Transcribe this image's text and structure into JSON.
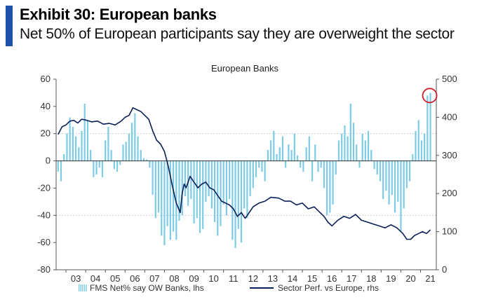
{
  "header": {
    "title": "Exhibit 30: European banks",
    "subtitle": "Net 50% of European participants say they are overweight the sector"
  },
  "colors": {
    "accent": "#1f4fa8",
    "bars": "#7ecbe6",
    "line": "#0b1f57",
    "highlight": "#d21f2b"
  },
  "chart_data": {
    "type": "bar",
    "title": "European Banks",
    "x_ticks": [
      "03",
      "04",
      "05",
      "06",
      "07",
      "08",
      "09",
      "10",
      "11",
      "12",
      "13",
      "14",
      "15",
      "16",
      "17",
      "18",
      "19",
      "20",
      "21"
    ],
    "y_left_ticks": [
      "60",
      "40",
      "20",
      "0",
      "-20",
      "-40",
      "-60",
      "-80"
    ],
    "y_right_ticks": [
      "500",
      "400",
      "300",
      "200",
      "100",
      "0"
    ],
    "ylim_left": [
      -80,
      60
    ],
    "ylim_right": [
      0,
      500
    ],
    "xlim": [
      2002.5,
      2021.8
    ],
    "legend": {
      "placement": "bottom",
      "entries": [
        "FMS Net% say OW Banks, lhs",
        "Sector Perf. vs Europe, rhs"
      ]
    },
    "annotation": "circle around the latest reading (2021)",
    "series": [
      {
        "name": "FMS Net% say OW Banks, lhs",
        "axis": "left",
        "x": [
          2002.6,
          2002.75,
          2002.9,
          2003.05,
          2003.2,
          2003.35,
          2003.5,
          2003.65,
          2003.8,
          2003.95,
          2004.1,
          2004.25,
          2004.4,
          2004.55,
          2004.7,
          2004.85,
          2005.0,
          2005.15,
          2005.3,
          2005.45,
          2005.6,
          2005.75,
          2005.9,
          2006.05,
          2006.2,
          2006.35,
          2006.5,
          2006.65,
          2006.8,
          2006.95,
          2007.1,
          2007.25,
          2007.4,
          2007.55,
          2007.7,
          2007.85,
          2008.0,
          2008.15,
          2008.3,
          2008.45,
          2008.6,
          2008.75,
          2008.9,
          2009.05,
          2009.2,
          2009.35,
          2009.5,
          2009.65,
          2009.8,
          2009.95,
          2010.1,
          2010.25,
          2010.4,
          2010.55,
          2010.7,
          2010.85,
          2011.0,
          2011.15,
          2011.3,
          2011.45,
          2011.6,
          2011.75,
          2011.9,
          2012.05,
          2012.2,
          2012.35,
          2012.5,
          2012.65,
          2012.8,
          2012.95,
          2013.1,
          2013.25,
          2013.4,
          2013.55,
          2013.7,
          2013.85,
          2014.0,
          2014.15,
          2014.3,
          2014.45,
          2014.6,
          2014.75,
          2014.9,
          2015.05,
          2015.2,
          2015.35,
          2015.5,
          2015.65,
          2015.8,
          2015.95,
          2016.1,
          2016.25,
          2016.4,
          2016.55,
          2016.7,
          2016.85,
          2017.0,
          2017.15,
          2017.3,
          2017.45,
          2017.6,
          2017.75,
          2017.9,
          2018.05,
          2018.2,
          2018.35,
          2018.5,
          2018.65,
          2018.8,
          2018.95,
          2019.1,
          2019.25,
          2019.4,
          2019.55,
          2019.7,
          2019.85,
          2020.0,
          2020.15,
          2020.3,
          2020.45,
          2020.6,
          2020.75,
          2020.9,
          2021.05,
          2021.2,
          2021.35,
          2021.5
        ],
        "values": [
          -8,
          -15,
          5,
          20,
          32,
          25,
          18,
          10,
          22,
          42,
          30,
          8,
          -12,
          -10,
          -5,
          -12,
          15,
          25,
          8,
          -6,
          -8,
          -3,
          12,
          14,
          20,
          28,
          35,
          18,
          8,
          2,
          1,
          -5,
          -25,
          -42,
          -38,
          -55,
          -62,
          -48,
          -58,
          -52,
          -58,
          -44,
          -40,
          -26,
          -33,
          -28,
          -46,
          -42,
          -53,
          -50,
          -30,
          -26,
          -35,
          -45,
          -55,
          -48,
          -32,
          -40,
          -28,
          -58,
          -64,
          -50,
          -60,
          -35,
          -42,
          -26,
          -20,
          -12,
          -5,
          -8,
          -15,
          8,
          15,
          22,
          5,
          10,
          18,
          -5,
          12,
          8,
          20,
          4,
          -5,
          -8,
          10,
          18,
          -15,
          12,
          -8,
          -5,
          -20,
          -40,
          -38,
          -32,
          -10,
          15,
          20,
          26,
          18,
          42,
          28,
          12,
          -5,
          20,
          15,
          22,
          8,
          -6,
          -10,
          -15,
          -28,
          -22,
          -32,
          -25,
          -38,
          -30,
          -52,
          -35,
          -20,
          -15,
          5,
          22,
          30,
          15,
          20,
          48,
          50
        ]
      },
      {
        "name": "Sector Perf. vs Europe, rhs",
        "axis": "right",
        "x": [
          2002.6,
          2002.8,
          2003.0,
          2003.2,
          2003.4,
          2003.6,
          2003.8,
          2004.0,
          2004.3,
          2004.6,
          2004.9,
          2005.2,
          2005.5,
          2005.8,
          2006.0,
          2006.2,
          2006.4,
          2006.6,
          2006.8,
          2007.0,
          2007.2,
          2007.4,
          2007.6,
          2007.8,
          2008.0,
          2008.2,
          2008.4,
          2008.6,
          2008.8,
          2008.9,
          2009.0,
          2009.1,
          2009.2,
          2009.3,
          2009.5,
          2009.7,
          2009.9,
          2010.1,
          2010.3,
          2010.5,
          2010.7,
          2010.9,
          2011.1,
          2011.3,
          2011.5,
          2011.7,
          2011.9,
          2012.1,
          2012.3,
          2012.5,
          2012.8,
          2013.1,
          2013.4,
          2013.8,
          2014.1,
          2014.4,
          2014.7,
          2015.0,
          2015.3,
          2015.6,
          2015.9,
          2016.1,
          2016.3,
          2016.5,
          2016.8,
          2017.1,
          2017.4,
          2017.7,
          2018.0,
          2018.3,
          2018.6,
          2018.9,
          2019.2,
          2019.5,
          2019.8,
          2020.0,
          2020.1,
          2020.3,
          2020.5,
          2020.7,
          2020.9,
          2021.1,
          2021.3,
          2021.5
        ],
        "values": [
          355,
          375,
          380,
          390,
          392,
          385,
          395,
          393,
          388,
          390,
          382,
          384,
          380,
          390,
          400,
          405,
          425,
          420,
          415,
          405,
          395,
          365,
          340,
          330,
          310,
          270,
          220,
          175,
          150,
          200,
          225,
          215,
          230,
          245,
          230,
          215,
          225,
          230,
          215,
          210,
          195,
          180,
          175,
          170,
          160,
          140,
          150,
          135,
          150,
          165,
          175,
          180,
          190,
          188,
          180,
          180,
          170,
          175,
          160,
          165,
          150,
          140,
          125,
          115,
          130,
          140,
          135,
          145,
          130,
          125,
          120,
          115,
          110,
          118,
          110,
          100,
          95,
          80,
          80,
          90,
          95,
          100,
          95,
          105
        ]
      }
    ]
  }
}
